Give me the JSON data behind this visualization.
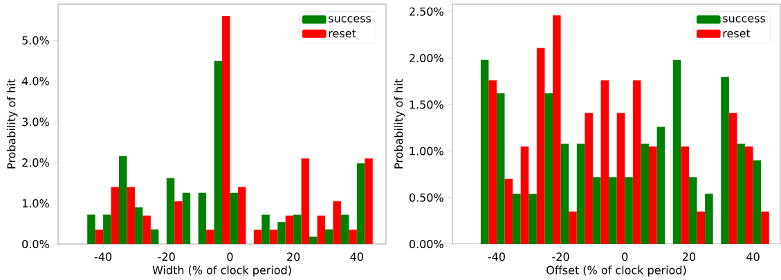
{
  "chart_data": [
    {
      "type": "bar",
      "xlabel": "Width (% of clock period)",
      "ylabel": "Probability of hit",
      "legend": "top right",
      "x": [
        -42.5,
        -37.5,
        -32.5,
        -27.5,
        -22.5,
        -17.5,
        -12.5,
        -7.5,
        -2.5,
        2.5,
        7.5,
        12.5,
        17.5,
        22.5,
        27.5,
        32.5,
        37.5,
        42.5
      ],
      "series": [
        {
          "name": "success",
          "color": "#008000",
          "values": [
            0.72,
            0.72,
            2.16,
            0.9,
            0.36,
            1.62,
            1.26,
            1.26,
            4.5,
            1.26,
            0,
            0.72,
            0.54,
            0.72,
            0.18,
            0.36,
            0.72,
            1.98
          ]
        },
        {
          "name": "reset",
          "color": "#ff0000",
          "values": [
            0.35,
            1.4,
            1.4,
            0.7,
            0,
            1.05,
            0,
            0.35,
            5.6,
            1.4,
            0.35,
            0.35,
            0.7,
            2.1,
            0.7,
            1.05,
            0.35,
            2.1
          ]
        }
      ],
      "xlim": [
        -54.2,
        49.2
      ],
      "ylim": [
        0,
        5.89
      ],
      "xticks": [
        -40,
        -20,
        0,
        20,
        40
      ],
      "yticks": [
        {
          "value": 0,
          "label": "0.0%"
        },
        {
          "value": 1,
          "label": "1.0%"
        },
        {
          "value": 2,
          "label": "2.0%"
        },
        {
          "value": 3,
          "label": "3.0%"
        },
        {
          "value": 4,
          "label": "4.0%"
        },
        {
          "value": 5,
          "label": "5.0%"
        }
      ]
    },
    {
      "type": "bar",
      "xlabel": "Offset (% of clock period)",
      "ylabel": "Probability of hit",
      "legend": "top right",
      "x": [
        -42.5,
        -37.5,
        -32.5,
        -27.5,
        -22.5,
        -17.5,
        -12.5,
        -7.5,
        -2.5,
        2.5,
        7.5,
        12.5,
        17.5,
        22.5,
        27.5,
        32.5,
        37.5,
        42.5
      ],
      "series": [
        {
          "name": "success",
          "color": "#008000",
          "values": [
            1.98,
            1.62,
            0.54,
            0.54,
            1.62,
            1.08,
            1.08,
            0.72,
            0.72,
            0.72,
            1.08,
            1.26,
            1.98,
            0.72,
            0.54,
            1.8,
            1.08,
            0.9
          ]
        },
        {
          "name": "reset",
          "color": "#ff0000",
          "values": [
            1.76,
            0.7,
            1.05,
            2.11,
            2.46,
            0.35,
            1.41,
            1.76,
            1.41,
            1.76,
            1.05,
            0,
            1.05,
            0.35,
            0,
            1.41,
            1.05,
            0.35
          ]
        }
      ],
      "xlim": [
        -53.8,
        48.5
      ],
      "ylim": [
        0,
        2.58
      ],
      "xticks": [
        -40,
        -20,
        0,
        20,
        40
      ],
      "yticks": [
        {
          "value": 0,
          "label": "0.00%"
        },
        {
          "value": 0.5,
          "label": "0.50%"
        },
        {
          "value": 1,
          "label": "1.00%"
        },
        {
          "value": 1.5,
          "label": "1.50%"
        },
        {
          "value": 2,
          "label": "2.00%"
        },
        {
          "value": 2.5,
          "label": "2.50%"
        }
      ]
    }
  ]
}
